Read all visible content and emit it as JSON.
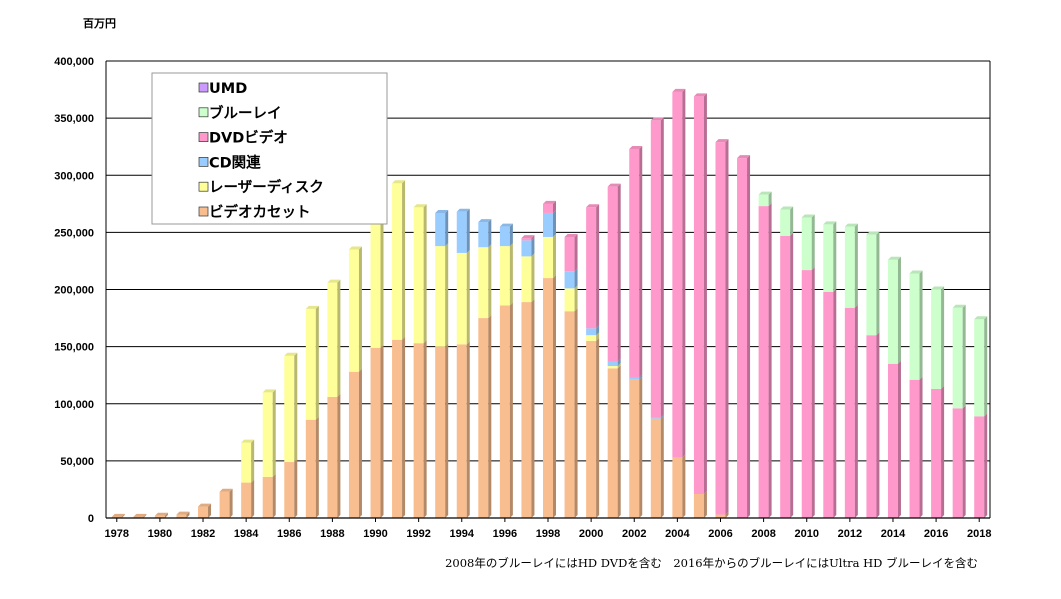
{
  "chart_data": {
    "type": "bar",
    "stacked": true,
    "unit_label": "百万円",
    "ylim": [
      0,
      400000
    ],
    "yticks": [
      "0",
      "50,000",
      "100,000",
      "150,000",
      "200,000",
      "250,000",
      "300,000",
      "350,000",
      "400,000"
    ],
    "xtick_labels": [
      "1978",
      "1980",
      "1982",
      "1984",
      "1986",
      "1988",
      "1990",
      "1992",
      "1994",
      "1996",
      "1998",
      "2000",
      "2002",
      "2004",
      "2006",
      "2008",
      "2010",
      "2012",
      "2014",
      "2016",
      "2018"
    ],
    "categories": [
      "1978",
      "1979",
      "1980",
      "1981",
      "1982",
      "1983",
      "1984",
      "1985",
      "1986",
      "1987",
      "1988",
      "1989",
      "1990",
      "1991",
      "1992",
      "1993",
      "1994",
      "1995",
      "1996",
      "1997",
      "1998",
      "1999",
      "2000",
      "2001",
      "2002",
      "2003",
      "2004",
      "2005",
      "2006",
      "2007",
      "2008",
      "2009",
      "2010",
      "2011",
      "2012",
      "2013",
      "2014",
      "2015",
      "2016",
      "2017",
      "2018"
    ],
    "series": [
      {
        "name": "ビデオカセット",
        "color": "#f9be8f",
        "values": [
          1000,
          1000,
          2000,
          3000,
          10000,
          23000,
          31000,
          36000,
          49000,
          86000,
          106000,
          128000,
          149000,
          156000,
          153000,
          150000,
          152000,
          175000,
          186000,
          189000,
          210000,
          181000,
          155000,
          131000,
          121000,
          87000,
          53000,
          21000,
          3000,
          0,
          0,
          0,
          0,
          0,
          0,
          0,
          0,
          0,
          0,
          0,
          0
        ]
      },
      {
        "name": "レーザーディスク",
        "color": "#ffff99",
        "values": [
          0,
          0,
          0,
          0,
          0,
          0,
          35000,
          74000,
          93000,
          97000,
          100000,
          107000,
          136000,
          137000,
          119000,
          88000,
          80000,
          62000,
          52000,
          40000,
          36000,
          20000,
          5000,
          2000,
          0,
          0,
          0,
          0,
          0,
          0,
          0,
          0,
          0,
          0,
          0,
          0,
          0,
          0,
          0,
          0,
          0
        ]
      },
      {
        "name": "CD関連",
        "color": "#99ccff",
        "values": [
          0,
          0,
          0,
          0,
          0,
          0,
          0,
          0,
          0,
          0,
          0,
          0,
          0,
          0,
          0,
          29000,
          36000,
          22000,
          17000,
          14000,
          21000,
          15000,
          6000,
          4000,
          2000,
          1000,
          0,
          0,
          0,
          0,
          0,
          0,
          0,
          0,
          0,
          0,
          0,
          0,
          0,
          0,
          0
        ]
      },
      {
        "name": "DVDビデオ",
        "color": "#ff99cc",
        "values": [
          0,
          0,
          0,
          0,
          0,
          0,
          0,
          0,
          0,
          0,
          0,
          0,
          0,
          0,
          0,
          0,
          0,
          0,
          0,
          2000,
          8000,
          30000,
          106000,
          153000,
          200000,
          260000,
          320000,
          348000,
          326000,
          315000,
          273000,
          247000,
          217000,
          198000,
          184000,
          160000,
          135000,
          121000,
          113000,
          96000,
          89000
        ]
      },
      {
        "name": "ブルーレイ",
        "color": "#ccffcc",
        "values": [
          0,
          0,
          0,
          0,
          0,
          0,
          0,
          0,
          0,
          0,
          0,
          0,
          0,
          0,
          0,
          0,
          0,
          0,
          0,
          0,
          0,
          0,
          0,
          0,
          0,
          0,
          0,
          0,
          0,
          0,
          10000,
          23000,
          46000,
          59000,
          71000,
          88000,
          91000,
          93000,
          87000,
          88000,
          85000
        ]
      },
      {
        "name": "UMD",
        "color": "#cc99ff",
        "values": [
          0,
          0,
          0,
          0,
          0,
          0,
          0,
          0,
          0,
          0,
          0,
          0,
          0,
          0,
          0,
          0,
          0,
          0,
          0,
          0,
          0,
          0,
          0,
          0,
          0,
          0,
          0,
          0,
          0,
          0,
          0,
          0,
          0,
          0,
          0,
          0,
          0,
          0,
          0,
          0,
          0
        ]
      }
    ],
    "legend_order": [
      "UMD",
      "ブルーレイ",
      "DVDビデオ",
      "CD関連",
      "レーザーディスク",
      "ビデオカセット"
    ],
    "legend_position": "top-left"
  },
  "footnote": "2008年のブルーレイにはHD DVDを含む　2016年からのブルーレイにはUltra HD ブルーレイを含む"
}
